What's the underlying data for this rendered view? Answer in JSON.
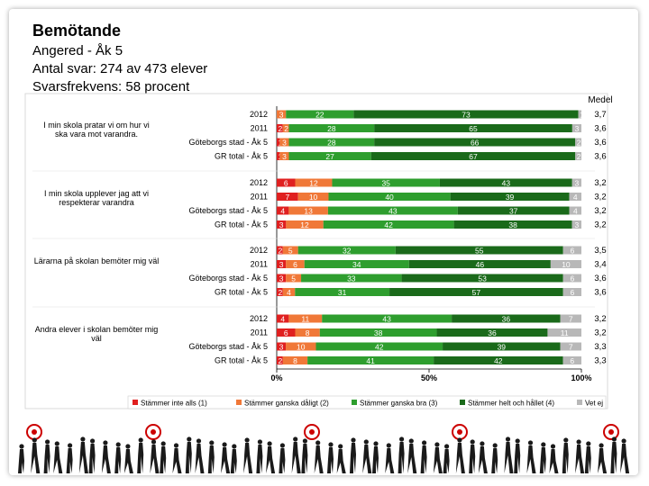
{
  "header": {
    "title": "Bemötande",
    "school": "Angered - Åk 5",
    "responses": "Antal svar: 274 av 473 elever",
    "rate": "Svarsfrekvens: 58 procent"
  },
  "chart_data": {
    "type": "bar",
    "stacked": true,
    "orientation": "horizontal",
    "medel_label": "Medel",
    "xticks": [
      "0%",
      "50%",
      "100%"
    ],
    "xlim": [
      0,
      100
    ],
    "legend": [
      {
        "name": "Stämmer inte alls (1)",
        "color": "#e02020"
      },
      {
        "name": "Stämmer ganska dåligt (2)",
        "color": "#f07838"
      },
      {
        "name": "Stämmer ganska bra (3)",
        "color": "#2e9e2e"
      },
      {
        "name": "Stämmer helt och hållet (4)",
        "color": "#1a6a1a"
      },
      {
        "name": "Vet ej",
        "color": "#b8b8b8"
      }
    ],
    "groups": [
      {
        "question": "I min skola pratar vi om hur vi ska vara mot varandra.",
        "rows": [
          {
            "label": "2012",
            "values": [
              0,
              3,
              22,
              73,
              1
            ],
            "labels": [
              "",
              "3",
              "22",
              "73",
              "1"
            ],
            "medel": "3,7"
          },
          {
            "label": "2011",
            "values": [
              2,
              2,
              28,
              65,
              3
            ],
            "labels": [
              "2",
              "2",
              "28",
              "65",
              "3"
            ],
            "medel": "3,6"
          },
          {
            "label": "Göteborgs stad - Åk 5",
            "values": [
              1,
              3,
              28,
              66,
              2
            ],
            "labels": [
              "1",
              "3",
              "28",
              "66",
              "2"
            ],
            "medel": "3,6"
          },
          {
            "label": "GR total - Åk 5",
            "values": [
              1,
              3,
              27,
              67,
              2
            ],
            "labels": [
              "1",
              "3",
              "27",
              "67",
              "2"
            ],
            "medel": "3,6"
          }
        ]
      },
      {
        "question": "I min skola upplever jag att vi respekterar varandra",
        "rows": [
          {
            "label": "2012",
            "values": [
              6,
              12,
              35,
              43,
              3
            ],
            "labels": [
              "6",
              "12",
              "35",
              "43",
              "3"
            ],
            "medel": "3,2"
          },
          {
            "label": "2011",
            "values": [
              7,
              10,
              40,
              39,
              4
            ],
            "labels": [
              "7",
              "10",
              "40",
              "39",
              "4"
            ],
            "medel": "3,2"
          },
          {
            "label": "Göteborgs stad - Åk 5",
            "values": [
              4,
              13,
              43,
              37,
              4
            ],
            "labels": [
              "4",
              "13",
              "43",
              "37",
              "4"
            ],
            "medel": "3,2"
          },
          {
            "label": "GR total - Åk 5",
            "values": [
              3,
              12,
              42,
              38,
              3
            ],
            "labels": [
              "3",
              "12",
              "42",
              "38",
              "3"
            ],
            "medel": "3,2"
          }
        ]
      },
      {
        "question": "Lärarna på skolan bemöter mig väl",
        "rows": [
          {
            "label": "2012",
            "values": [
              2,
              5,
              32,
              55,
              6
            ],
            "labels": [
              "2",
              "5",
              "32",
              "55",
              "6"
            ],
            "medel": "3,5"
          },
          {
            "label": "2011",
            "values": [
              3,
              6,
              34,
              46,
              10
            ],
            "labels": [
              "3",
              "6",
              "34",
              "46",
              "10"
            ],
            "medel": "3,4"
          },
          {
            "label": "Göteborgs stad - Åk 5",
            "values": [
              3,
              5,
              33,
              53,
              6
            ],
            "labels": [
              "3",
              "5",
              "33",
              "53",
              "6"
            ],
            "medel": "3,6"
          },
          {
            "label": "GR total - Åk 5",
            "values": [
              2,
              4,
              31,
              57,
              6
            ],
            "labels": [
              "2",
              "4",
              "31",
              "57",
              "6"
            ],
            "medel": "3,6"
          }
        ]
      },
      {
        "question": "Andra elever i skolan bemöter mig väl",
        "rows": [
          {
            "label": "2012",
            "values": [
              4,
              11,
              43,
              36,
              7
            ],
            "labels": [
              "4",
              "11",
              "43",
              "36",
              "7"
            ],
            "medel": "3,2"
          },
          {
            "label": "2011",
            "values": [
              6,
              8,
              38,
              36,
              11
            ],
            "labels": [
              "6",
              "8",
              "38",
              "36",
              "11"
            ],
            "medel": "3,2"
          },
          {
            "label": "Göteborgs stad - Åk 5",
            "values": [
              3,
              10,
              42,
              39,
              7
            ],
            "labels": [
              "3",
              "10",
              "42",
              "39",
              "7"
            ],
            "medel": "3,3"
          },
          {
            "label": "GR total - Åk 5",
            "values": [
              2,
              8,
              41,
              42,
              6
            ],
            "labels": [
              "2",
              "8",
              "41",
              "42",
              "6"
            ],
            "medel": "3,3"
          }
        ]
      }
    ]
  }
}
